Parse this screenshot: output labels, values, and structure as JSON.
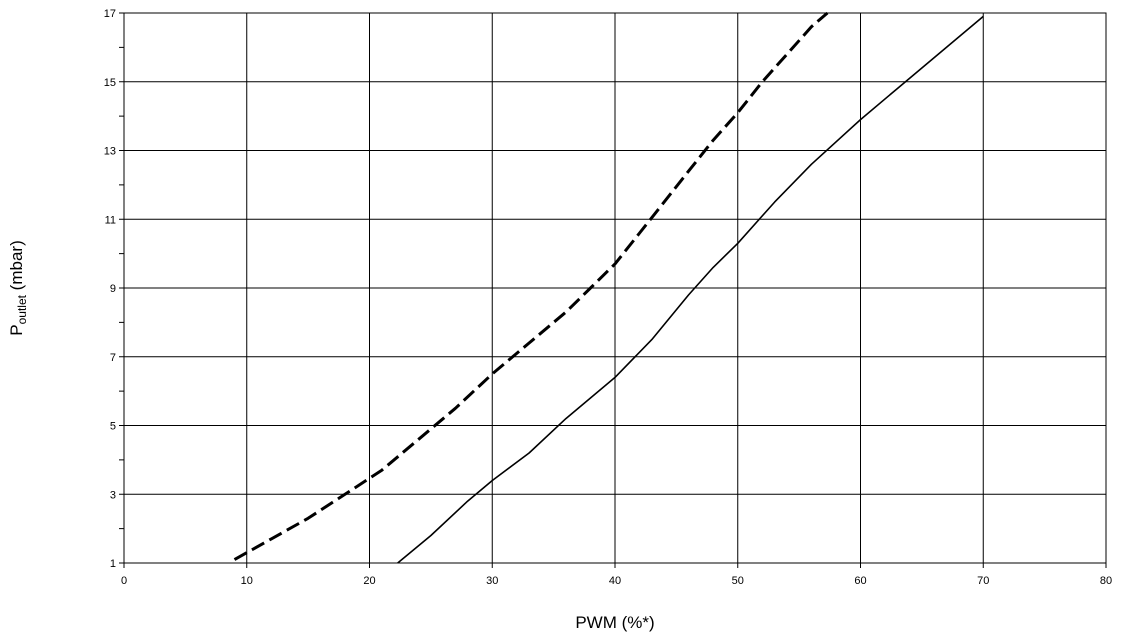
{
  "chart_data": {
    "type": "line",
    "xlabel": "PWM (%*)",
    "ylabel_main": "P",
    "ylabel_sub": "outlet",
    "ylabel_unit": " (mbar)",
    "xlim": [
      0,
      80
    ],
    "ylim": [
      1,
      17
    ],
    "x_ticks": [
      0,
      10,
      20,
      30,
      40,
      50,
      60,
      70,
      80
    ],
    "x_tick_labels": [
      "0",
      "10",
      "20",
      "30",
      "40",
      "50",
      "60",
      "70",
      "80"
    ],
    "y_ticks": [
      1,
      3,
      5,
      7,
      9,
      11,
      13,
      15,
      17
    ],
    "y_tick_labels": [
      "1",
      "3",
      "5",
      "7",
      "9",
      "11",
      "13",
      "15",
      "17"
    ],
    "y_minor_step": 1,
    "grid": true,
    "series": [
      {
        "style": "dashed",
        "color": "#000000",
        "x": [
          9,
          12,
          15,
          18,
          21,
          24,
          27,
          30,
          33,
          36,
          38,
          40,
          42,
          44,
          46,
          48,
          50,
          52,
          54,
          56,
          57.3
        ],
        "y": [
          1.1,
          1.7,
          2.3,
          3.0,
          3.7,
          4.6,
          5.5,
          6.5,
          7.4,
          8.3,
          9.0,
          9.7,
          10.6,
          11.5,
          12.4,
          13.3,
          14.1,
          15.0,
          15.8,
          16.6,
          17.0
        ]
      },
      {
        "style": "solid",
        "color": "#000000",
        "x": [
          22.3,
          25,
          28,
          30,
          33,
          36,
          40,
          43,
          46,
          48,
          50,
          53,
          56,
          60,
          63,
          67,
          70
        ],
        "y": [
          1.0,
          1.8,
          2.8,
          3.4,
          4.2,
          5.2,
          6.4,
          7.5,
          8.8,
          9.6,
          10.3,
          11.5,
          12.6,
          13.9,
          14.8,
          16.0,
          16.9
        ]
      }
    ]
  }
}
